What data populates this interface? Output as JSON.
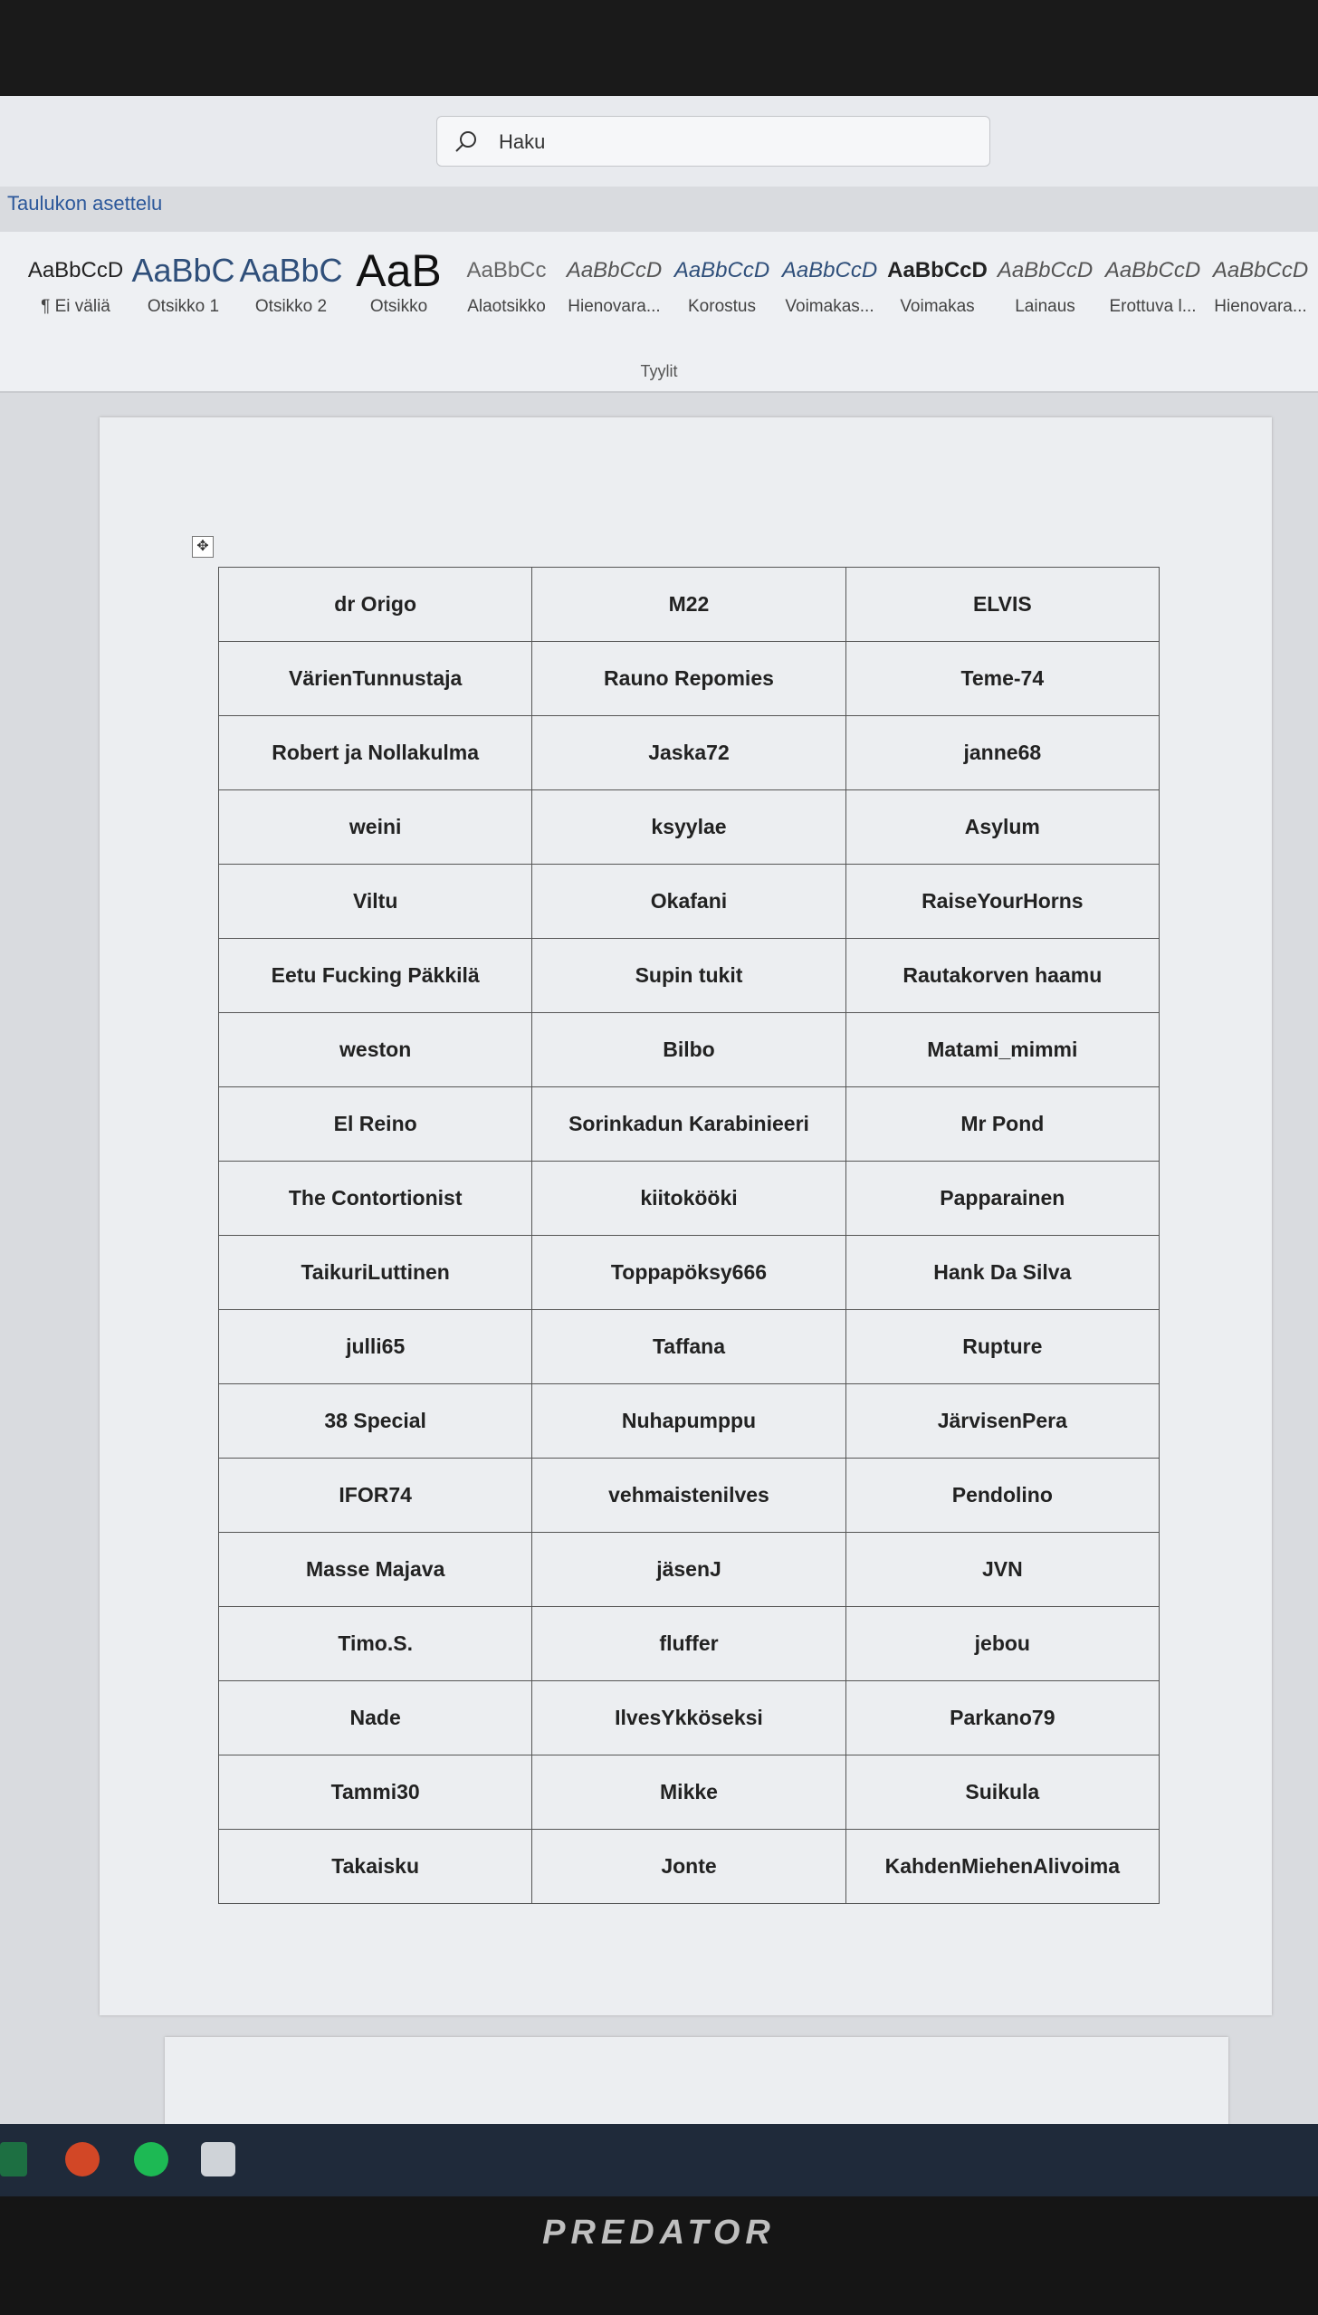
{
  "search": {
    "placeholder": "Haku"
  },
  "ribbon": {
    "tab": "Taulukon asettelu",
    "group_label": "Tyylit",
    "styles": [
      {
        "preview": "AaBbCcD",
        "name": "¶ Ei väliä"
      },
      {
        "preview": "AaBbC",
        "name": "Otsikko 1"
      },
      {
        "preview": "AaBbC",
        "name": "Otsikko 2"
      },
      {
        "preview": "AaB",
        "name": "Otsikko"
      },
      {
        "preview": "AaBbCc",
        "name": "Alaotsikko"
      },
      {
        "preview": "AaBbCcD",
        "name": "Hienovara..."
      },
      {
        "preview": "AaBbCcD",
        "name": "Korostus"
      },
      {
        "preview": "AaBbCcD",
        "name": "Voimakas..."
      },
      {
        "preview": "AaBbCcD",
        "name": "Voimakas"
      },
      {
        "preview": "AaBbCcD",
        "name": "Lainaus"
      },
      {
        "preview": "AaBbCcD",
        "name": "Erottuva l..."
      },
      {
        "preview": "AaBbCcD",
        "name": "Hienovara..."
      }
    ]
  },
  "table": {
    "rows": [
      [
        "dr Origo",
        "M22",
        "ELVIS"
      ],
      [
        "VärienTunnustaja",
        "Rauno Repomies",
        "Teme-74"
      ],
      [
        "Robert ja Nollakulma",
        "Jaska72",
        "janne68"
      ],
      [
        "weini",
        "ksyylae",
        "Asylum"
      ],
      [
        "Viltu",
        "Okafani",
        "RaiseYourHorns"
      ],
      [
        "Eetu Fucking Päkkilä",
        "Supin tukit",
        "Rautakorven haamu"
      ],
      [
        "weston",
        "Bilbo",
        "Matami_mimmi"
      ],
      [
        "El Reino",
        "Sorinkadun Karabinieeri",
        "Mr Pond"
      ],
      [
        "The Contortionist",
        "kiitokööki",
        "Papparainen"
      ],
      [
        "TaikuriLuttinen",
        "Toppapöksy666",
        "Hank Da Silva"
      ],
      [
        "julli65",
        "Taffana",
        "Rupture"
      ],
      [
        "38 Special",
        "Nuhapumppu",
        "JärvisenPera"
      ],
      [
        "IFOR74",
        "vehmaistenilves",
        "Pendolino"
      ],
      [
        "Masse Majava",
        "jäsenJ",
        "JVN"
      ],
      [
        "Timo.S.",
        "fluffer",
        "jebou"
      ],
      [
        "Nade",
        "IlvesYkköseksi",
        "Parkano79"
      ],
      [
        "Tammi30",
        "Mikke",
        "Suikula"
      ],
      [
        "Takaisku",
        "Jonte",
        "KahdenMiehenAlivoima"
      ]
    ]
  },
  "monitor": {
    "brand": "PREDATOR"
  }
}
